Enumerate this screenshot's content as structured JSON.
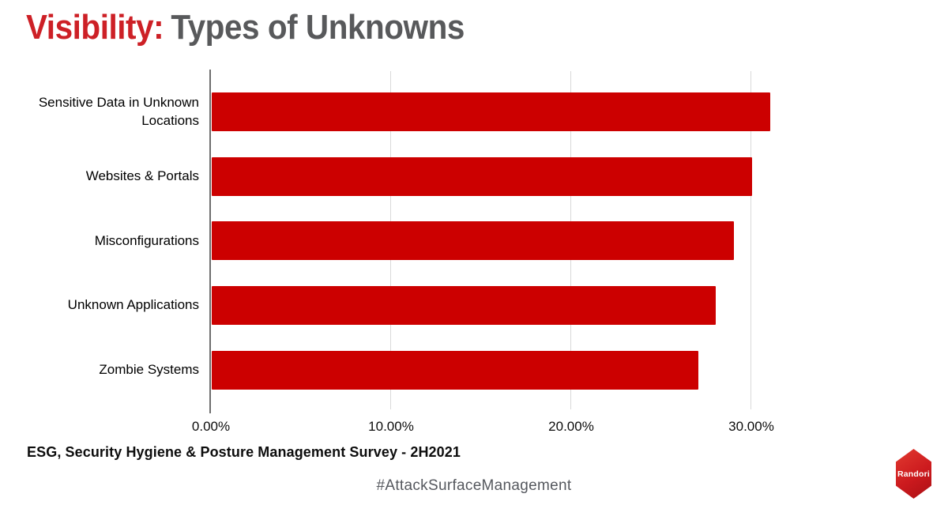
{
  "title": {
    "highlight": "Visibility:",
    "rest": "Types of Unknowns"
  },
  "chart_data": {
    "type": "bar",
    "orientation": "horizontal",
    "title": "Visibility: Types of Unknowns",
    "categories": [
      "Sensitive Data in Unknown Locations",
      "Websites & Portals",
      "Misconfigurations",
      "Unknown Applications",
      "Zombie Systems"
    ],
    "values": [
      31,
      30,
      29,
      28,
      27
    ],
    "value_unit": "%",
    "xlim": [
      0,
      40
    ],
    "xmax": 40,
    "x_ticks": [
      "0.00%",
      "10.00%",
      "20.00%",
      "30.00%"
    ],
    "x_tick_values": [
      0,
      10,
      20,
      30
    ],
    "grid": true,
    "legend": false,
    "bar_color": "#cc0000"
  },
  "footer": {
    "source_note": "ESG, Security Hygiene & Posture Management Survey - 2H2021",
    "hashtag": "#AttackSurfaceManagement"
  },
  "logo": {
    "label": "Randori"
  },
  "colors": {
    "bar": "#cc0000",
    "title_accent": "#cd2026",
    "title_rest": "#58595b",
    "axis_line": "#6e6e6e",
    "gridline": "#d9d9d9",
    "hashtag": "#55585e",
    "logo_red_top": "#e23a30",
    "logo_red_bottom": "#ab1015"
  }
}
